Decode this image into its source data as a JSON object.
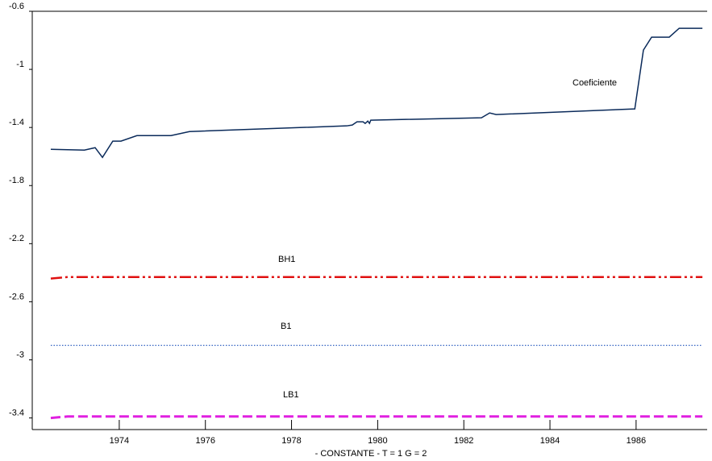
{
  "chart_data": {
    "type": "line",
    "xlabel": "- CONSTANTE - T = 1 G = 2",
    "xlim": [
      1971.98,
      1987.65
    ],
    "ylim": [
      -3.48,
      -0.6
    ],
    "xticks": [
      1974,
      1976,
      1978,
      1980,
      1982,
      1984,
      1986
    ],
    "yticks": [
      -0.6,
      -1.0,
      -1.4,
      -1.8,
      -2.2,
      -2.6,
      -3.0,
      -3.4
    ],
    "grid": false,
    "series": [
      {
        "name": "Coeficiente",
        "color": "#0a2a5a",
        "dash": "solid",
        "x": [
          1972.41,
          1973.19,
          1973.44,
          1973.61,
          1973.85,
          1974.04,
          1974.41,
          1975.2,
          1975.63,
          1979.28,
          1979.41,
          1979.52,
          1979.66,
          1979.71,
          1979.77,
          1979.81,
          1979.84,
          1982.41,
          1982.6,
          1982.75,
          1985.97,
          1986.17,
          1986.36,
          1986.77,
          1987.0,
          1987.54
        ],
        "values": [
          -1.55,
          -1.556,
          -1.539,
          -1.606,
          -1.494,
          -1.494,
          -1.456,
          -1.456,
          -1.428,
          -1.389,
          -1.383,
          -1.361,
          -1.361,
          -1.372,
          -1.356,
          -1.372,
          -1.35,
          -1.333,
          -1.3,
          -1.311,
          -1.272,
          -0.867,
          -0.778,
          -0.778,
          -0.717,
          -0.717
        ]
      },
      {
        "name": "BH1",
        "color": "#e01010",
        "dash": "dashdotdot",
        "x": [
          1972.41,
          1972.8,
          1987.54
        ],
        "values": [
          -2.44,
          -2.43,
          -2.43
        ]
      },
      {
        "name": "B1",
        "color": "#3060c0",
        "dash": "dotted",
        "x": [
          1972.41,
          1987.54
        ],
        "values": [
          -2.9,
          -2.9
        ]
      },
      {
        "name": "LB1",
        "color": "#e020e0",
        "dash": "dashed",
        "x": [
          1972.41,
          1972.8,
          1987.54
        ],
        "values": [
          -3.4,
          -3.39,
          -3.39
        ]
      }
    ]
  }
}
